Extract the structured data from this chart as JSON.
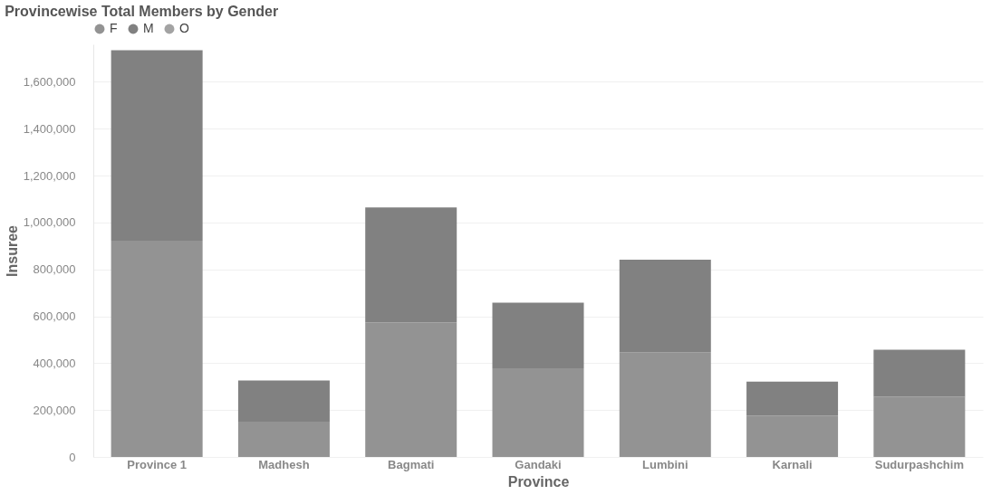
{
  "chart_data": {
    "type": "bar",
    "title": "Provincewise Total Members by Gender",
    "xlabel": "Province",
    "ylabel": "Insuree",
    "categories": [
      "Province 1",
      "Madhesh",
      "Bagmati",
      "Gandaki",
      "Lumbini",
      "Karnali",
      "Sudurpashchim"
    ],
    "stacked": true,
    "series": [
      {
        "name": "F",
        "color": "#939393",
        "values": [
          922000,
          151000,
          573000,
          378000,
          447000,
          176000,
          257000
        ]
      },
      {
        "name": "M",
        "color": "#818181",
        "values": [
          813000,
          175000,
          491000,
          280000,
          394000,
          145000,
          200000
        ]
      },
      {
        "name": "O",
        "color": "#a3a3a3",
        "values": [
          null,
          null,
          null,
          null,
          null,
          null,
          null
        ]
      }
    ],
    "ylim": [
      0,
      1760000
    ],
    "yticks": [
      0,
      {
        "value": 200000,
        "label": "200,000"
      },
      {
        "value": 400000,
        "label": "400,000"
      },
      {
        "value": 600000,
        "label": "600,000"
      },
      {
        "value": 800000,
        "label": "800,000"
      },
      {
        "value": 1000000,
        "label": "1,000,000"
      },
      {
        "value": 1200000,
        "label": "1,200,000"
      },
      {
        "value": 1400000,
        "label": "1,400,000"
      },
      {
        "value": 1600000,
        "label": "1,600,000"
      }
    ],
    "grid": "y",
    "legend": "top left"
  }
}
